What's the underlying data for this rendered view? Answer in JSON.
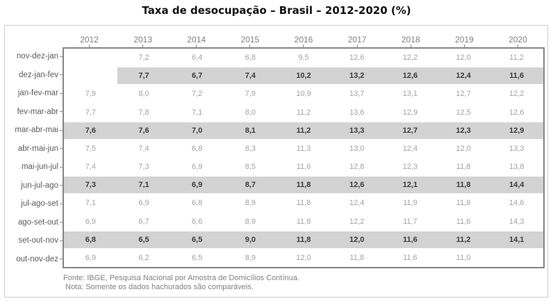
{
  "title": "Taxa de desocupação – Brasil – 2012-2020 (%)",
  "footer": {
    "fonte": "Fonte: IBGE, Pesquisa Nacional por Amostra de Domicílios Contínua.",
    "nota": "Nota: Somente os dados hachurados são comparáveis."
  },
  "colors": {
    "highlight_band": "#d3d3d3",
    "plot_border": "#858585",
    "frame_border": "#c7cdd3",
    "normal_value_text": "#a2a2a2",
    "highlight_value_text": "#3a3a3a",
    "row_label_text": "#5c5c5c",
    "year_label_text": "#818181",
    "title_text": "#111111"
  },
  "chart_data": {
    "type": "table",
    "title": "Taxa de desocupação – Brasil – 2012-2020 (%)",
    "unit": "%",
    "columns": [
      "2012",
      "2013",
      "2014",
      "2015",
      "2016",
      "2017",
      "2018",
      "2019",
      "2020"
    ],
    "rows": [
      {
        "label": "nov-dez-jan",
        "highlighted": false,
        "highlight_from_col": null,
        "values": [
          "",
          "7,2",
          "6,4",
          "6,8",
          "9,5",
          "12,6",
          "12,2",
          "12,0",
          "11,2"
        ]
      },
      {
        "label": "dez-jan-fev",
        "highlighted": true,
        "highlight_from_col": 1,
        "values": [
          "",
          "7,7",
          "6,7",
          "7,4",
          "10,2",
          "13,2",
          "12,6",
          "12,4",
          "11,6"
        ]
      },
      {
        "label": "jan-fev-mar",
        "highlighted": false,
        "highlight_from_col": null,
        "values": [
          "7,9",
          "8,0",
          "7,2",
          "7,9",
          "10,9",
          "13,7",
          "13,1",
          "12,7",
          "12,2"
        ]
      },
      {
        "label": "fev-mar-abr",
        "highlighted": false,
        "highlight_from_col": null,
        "values": [
          "7,7",
          "7,8",
          "7,1",
          "8,0",
          "11,2",
          "13,6",
          "12,9",
          "12,5",
          "12,6"
        ]
      },
      {
        "label": "mar-abr-mai",
        "highlighted": true,
        "highlight_from_col": 0,
        "values": [
          "7,6",
          "7,6",
          "7,0",
          "8,1",
          "11,2",
          "13,3",
          "12,7",
          "12,3",
          "12,9"
        ]
      },
      {
        "label": "abr-mai-jun",
        "highlighted": false,
        "highlight_from_col": null,
        "values": [
          "7,5",
          "7,4",
          "6,8",
          "8,3",
          "11,3",
          "13,0",
          "12,4",
          "12,0",
          "13,3"
        ]
      },
      {
        "label": "mai-jun-jul",
        "highlighted": false,
        "highlight_from_col": null,
        "values": [
          "7,4",
          "7,3",
          "6,9",
          "8,5",
          "11,6",
          "12,8",
          "12,3",
          "11,8",
          "13,8"
        ]
      },
      {
        "label": "jun-jul-ago",
        "highlighted": true,
        "highlight_from_col": 0,
        "values": [
          "7,3",
          "7,1",
          "6,9",
          "8,7",
          "11,8",
          "12,6",
          "12,1",
          "11,8",
          "14,4"
        ]
      },
      {
        "label": "jul-ago-set",
        "highlighted": false,
        "highlight_from_col": null,
        "values": [
          "7,1",
          "6,9",
          "6,8",
          "8,9",
          "11,8",
          "12,4",
          "11,9",
          "11,8",
          "14,6"
        ]
      },
      {
        "label": "ago-set-out",
        "highlighted": false,
        "highlight_from_col": null,
        "values": [
          "6,9",
          "6,7",
          "6,6",
          "8,9",
          "11,8",
          "12,2",
          "11,7",
          "11,6",
          "14,3"
        ]
      },
      {
        "label": "set-out-nov",
        "highlighted": true,
        "highlight_from_col": 0,
        "values": [
          "6,8",
          "6,5",
          "6,5",
          "9,0",
          "11,8",
          "12,0",
          "11,6",
          "11,2",
          "14,1"
        ]
      },
      {
        "label": "out-nov-dez",
        "highlighted": false,
        "highlight_from_col": null,
        "values": [
          "6,9",
          "6,2",
          "6,5",
          "8,9",
          "12,0",
          "11,8",
          "11,6",
          "11,0",
          ""
        ]
      }
    ]
  }
}
